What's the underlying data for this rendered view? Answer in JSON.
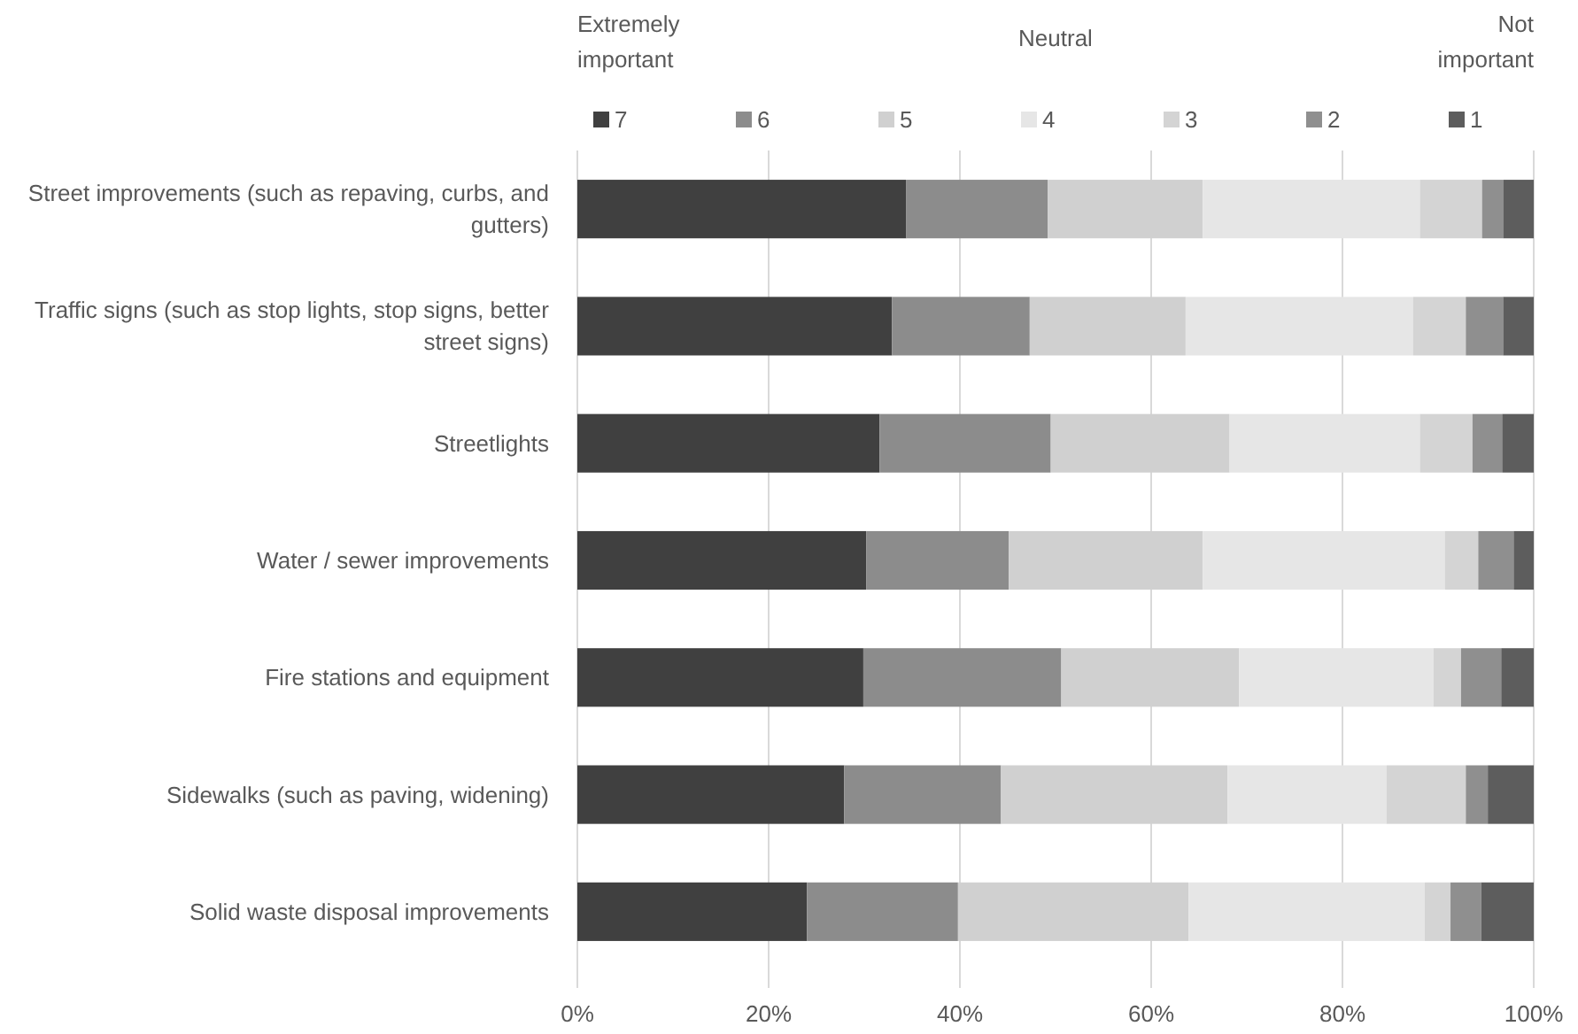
{
  "chart_data": {
    "type": "bar",
    "orientation": "horizontal",
    "stacked": true,
    "categories": [
      "Street improvements (such as repaving, curbs, and gutters)",
      "Traffic signs (such as stop lights, stop signs, better street signs)",
      "Streetlights",
      "Water / sewer improvements",
      "Fire stations and equipment",
      "Sidewalks (such as paving, widening)",
      "Solid waste disposal improvements"
    ],
    "series": [
      {
        "name": "7",
        "color": "#404040",
        "values": [
          34.4,
          32.9,
          31.6,
          30.2,
          29.9,
          27.9,
          24.0
        ]
      },
      {
        "name": "6",
        "color": "#8c8c8c",
        "values": [
          14.8,
          14.4,
          17.9,
          14.9,
          20.7,
          16.4,
          15.8
        ]
      },
      {
        "name": "5",
        "color": "#d0d0d0",
        "values": [
          16.2,
          16.3,
          18.7,
          20.3,
          18.6,
          23.7,
          24.1
        ]
      },
      {
        "name": "4",
        "color": "#e6e6e6",
        "values": [
          22.7,
          23.8,
          19.9,
          25.3,
          20.3,
          16.6,
          24.7
        ]
      },
      {
        "name": "3",
        "color": "#d4d4d4",
        "values": [
          6.5,
          5.5,
          5.5,
          3.5,
          2.9,
          8.3,
          2.7
        ]
      },
      {
        "name": "2",
        "color": "#8f8f8f",
        "values": [
          2.2,
          3.9,
          3.1,
          3.7,
          4.2,
          2.3,
          3.2
        ]
      },
      {
        "name": "1",
        "color": "#5d5d5d",
        "values": [
          3.2,
          3.2,
          3.3,
          2.1,
          3.4,
          4.8,
          5.5
        ]
      }
    ],
    "xlim": [
      0,
      100
    ],
    "xticks": [
      {
        "value": 0,
        "label": "0%"
      },
      {
        "value": 20,
        "label": "20%"
      },
      {
        "value": 40,
        "label": "40%"
      },
      {
        "value": 60,
        "label": "60%"
      },
      {
        "value": 80,
        "label": "80%"
      },
      {
        "value": 100,
        "label": "100%"
      }
    ],
    "grid": "x",
    "legend": "top",
    "annotations": [
      "Extremely important",
      "Neutral",
      "Not important"
    ]
  }
}
